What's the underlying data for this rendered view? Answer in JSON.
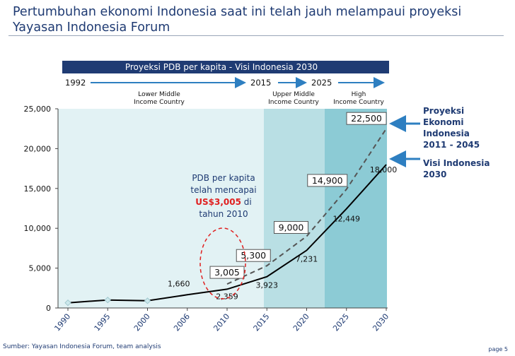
{
  "title": "Pertumbuhan ekonomi Indonesia saat ini telah jauh melampaui proyeksi Yayasan Indonesia Forum",
  "source": "Sumber: Yayasan Indonesia Forum, team analysis",
  "page": "page 5",
  "colors": {
    "navy": "#1f3b73",
    "arrow": "#2e7fc1",
    "band1": "#e2f2f4",
    "band2": "#b9dfe4",
    "band3": "#8ccbd5",
    "highlight": "#e02020"
  },
  "chart_data": {
    "type": "line",
    "title": "Proyeksi PDB per kapita - Visi Indonesia 2030",
    "x": [
      1990,
      1995,
      2000,
      2006,
      2010,
      2015,
      2020,
      2025,
      2030
    ],
    "x_tick_labels": [
      "1990",
      "1995",
      "2000",
      "2006",
      "2010",
      "2015",
      "2020",
      "2025",
      "2030"
    ],
    "ylim": [
      0,
      25000
    ],
    "y_ticks": [
      0,
      5000,
      10000,
      15000,
      20000,
      25000
    ],
    "y_tick_labels": [
      "0",
      "5,000",
      "10,000",
      "15,000",
      "20,000",
      "25,000"
    ],
    "series": [
      {
        "name": "Proyeksi Ekonomi Indonesia 2011 - 2045",
        "style": "dashed",
        "color": "#555555",
        "values": [
          null,
          null,
          null,
          null,
          3005,
          5300,
          9000,
          14900,
          22500
        ],
        "labels": [
          "",
          "",
          "",
          "",
          "3,005",
          "5,300",
          "9,000",
          "14,900",
          "22,500"
        ]
      },
      {
        "name": "Visi Indonesia 2030",
        "style": "solid",
        "color": "#000000",
        "values": [
          650,
          1000,
          900,
          1660,
          2359,
          3923,
          7231,
          12449,
          18000
        ],
        "labels": [
          "",
          "",
          "",
          "1,660",
          "2,359",
          "3,923",
          "7,231",
          "12,449",
          "18,000"
        ]
      }
    ],
    "timeline": {
      "start": "1992",
      "mid": "2015",
      "end": "2025"
    },
    "bands": [
      {
        "label_line1": "Lower Middle",
        "label_line2": "Income Country"
      },
      {
        "label_line1": "Upper Middle",
        "label_line2": "Income Country"
      },
      {
        "label_line1": "High",
        "label_line2": "Income Country"
      }
    ],
    "legend": [
      {
        "l1": "Proyeksi",
        "l2": "Ekonomi",
        "l3": "Indonesia",
        "l4": "2011 -  2045"
      },
      {
        "l1": "Visi Indonesia",
        "l2": "2030"
      }
    ],
    "annotation": {
      "line1": "PDB per kapita",
      "line2": "telah mencapai",
      "highlight": "US$3,005",
      "line3_rest": " di",
      "line4": "tahun 2010"
    }
  }
}
